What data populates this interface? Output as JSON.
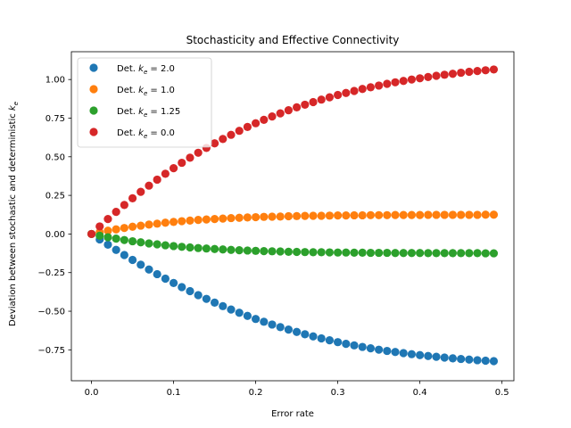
{
  "chart_data": {
    "type": "scatter",
    "title": "Stochasticity and Effective Connectivity",
    "xlabel": "Error rate",
    "ylabel": "Deviation between stochastic and deterministic k_e",
    "xlim": [
      -0.0245,
      0.5145
    ],
    "ylim": [
      -0.95,
      1.18
    ],
    "xticks": [
      0.0,
      0.1,
      0.2,
      0.3,
      0.4,
      0.5
    ],
    "xtick_labels": [
      "0.0",
      "0.1",
      "0.2",
      "0.3",
      "0.4",
      "0.5"
    ],
    "yticks": [
      -0.75,
      -0.5,
      -0.25,
      0.0,
      0.25,
      0.5,
      0.75,
      1.0
    ],
    "ytick_labels": [
      "−0.75",
      "−0.50",
      "−0.25",
      "0.00",
      "0.25",
      "0.50",
      "0.75",
      "1.00"
    ],
    "grid": false,
    "legend_position": "top-left",
    "x": [
      0.0,
      0.01,
      0.02,
      0.03,
      0.04,
      0.05,
      0.06,
      0.07,
      0.08,
      0.09,
      0.1,
      0.11,
      0.12,
      0.13,
      0.14,
      0.15,
      0.16,
      0.17,
      0.18,
      0.19,
      0.2,
      0.21,
      0.22,
      0.23,
      0.24,
      0.25,
      0.26,
      0.27,
      0.28,
      0.29,
      0.3,
      0.31,
      0.32,
      0.33,
      0.34,
      0.35,
      0.36,
      0.37,
      0.38,
      0.39,
      0.4,
      0.41,
      0.42,
      0.43,
      0.44,
      0.45,
      0.46,
      0.47,
      0.48,
      0.49
    ],
    "series": [
      {
        "name": "Det. k_e = 2.0",
        "label_prefix": "Det. ",
        "label_sub": "e",
        "label_suffix": " = 2.0",
        "color": "#1f77b4",
        "values": [
          0.0,
          -0.035,
          -0.069,
          -0.103,
          -0.136,
          -0.168,
          -0.199,
          -0.23,
          -0.26,
          -0.289,
          -0.317,
          -0.344,
          -0.37,
          -0.396,
          -0.42,
          -0.444,
          -0.467,
          -0.489,
          -0.51,
          -0.53,
          -0.55,
          -0.568,
          -0.586,
          -0.603,
          -0.619,
          -0.634,
          -0.649,
          -0.663,
          -0.676,
          -0.688,
          -0.7,
          -0.711,
          -0.721,
          -0.731,
          -0.74,
          -0.749,
          -0.757,
          -0.764,
          -0.771,
          -0.778,
          -0.784,
          -0.79,
          -0.795,
          -0.8,
          -0.805,
          -0.809,
          -0.813,
          -0.817,
          -0.82,
          -0.823
        ]
      },
      {
        "name": "Det. k_e = 1.0",
        "label_prefix": "Det. ",
        "label_sub": "e",
        "label_suffix": " = 1.0",
        "color": "#ff7f0e",
        "values": [
          0.0,
          0.011,
          0.021,
          0.03,
          0.039,
          0.047,
          0.054,
          0.061,
          0.067,
          0.073,
          0.078,
          0.083,
          0.087,
          0.091,
          0.094,
          0.097,
          0.1,
          0.103,
          0.105,
          0.107,
          0.109,
          0.111,
          0.112,
          0.113,
          0.115,
          0.116,
          0.117,
          0.118,
          0.118,
          0.119,
          0.12,
          0.12,
          0.121,
          0.121,
          0.122,
          0.122,
          0.122,
          0.123,
          0.123,
          0.123,
          0.123,
          0.124,
          0.124,
          0.124,
          0.124,
          0.124,
          0.124,
          0.124,
          0.125,
          0.125
        ]
      },
      {
        "name": "Det. k_e = 1.25",
        "label_prefix": "Det. ",
        "label_sub": "e",
        "label_suffix": " = 1.25",
        "color": "#2ca02c",
        "values": [
          0.0,
          -0.011,
          -0.021,
          -0.03,
          -0.039,
          -0.047,
          -0.054,
          -0.061,
          -0.067,
          -0.073,
          -0.078,
          -0.083,
          -0.087,
          -0.091,
          -0.094,
          -0.097,
          -0.1,
          -0.103,
          -0.105,
          -0.107,
          -0.109,
          -0.111,
          -0.112,
          -0.113,
          -0.115,
          -0.116,
          -0.117,
          -0.118,
          -0.118,
          -0.119,
          -0.12,
          -0.12,
          -0.121,
          -0.121,
          -0.122,
          -0.122,
          -0.122,
          -0.123,
          -0.123,
          -0.123,
          -0.123,
          -0.124,
          -0.124,
          -0.124,
          -0.124,
          -0.124,
          -0.124,
          -0.124,
          -0.125,
          -0.125
        ]
      },
      {
        "name": "Det. k_e = 0.0",
        "label_prefix": "Det. ",
        "label_sub": "e",
        "label_suffix": " = 0.0",
        "color": "#d62728",
        "values": [
          0.0,
          0.049,
          0.097,
          0.143,
          0.188,
          0.231,
          0.273,
          0.313,
          0.352,
          0.39,
          0.426,
          0.461,
          0.494,
          0.526,
          0.557,
          0.587,
          0.615,
          0.642,
          0.668,
          0.693,
          0.717,
          0.739,
          0.761,
          0.781,
          0.801,
          0.82,
          0.837,
          0.854,
          0.87,
          0.885,
          0.9,
          0.913,
          0.926,
          0.939,
          0.95,
          0.961,
          0.972,
          0.982,
          0.991,
          1.0,
          1.008,
          1.016,
          1.024,
          1.031,
          1.037,
          1.044,
          1.05,
          1.055,
          1.06,
          1.065
        ]
      }
    ]
  }
}
